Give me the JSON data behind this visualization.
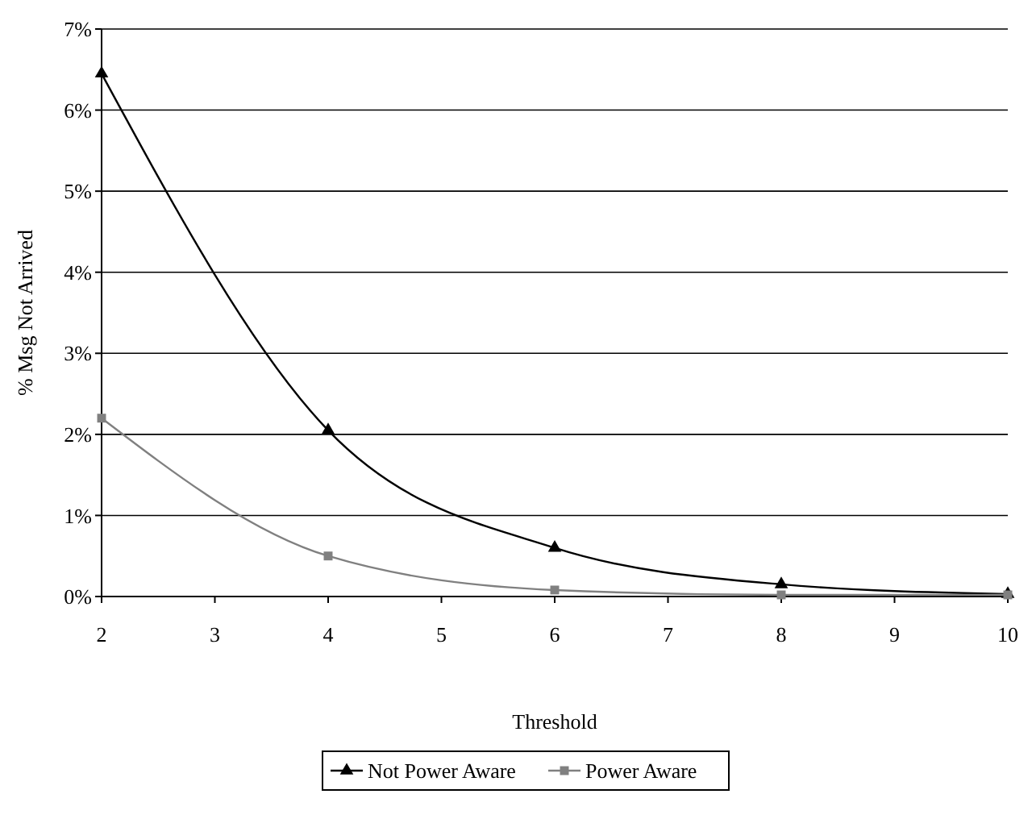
{
  "chart_data": {
    "type": "line",
    "xlabel": "Threshold",
    "ylabel": "% Msg Not Arrived",
    "x": [
      2,
      4,
      6,
      8,
      10
    ],
    "series": [
      {
        "name": "Not Power Aware",
        "color": "#000000",
        "marker": "triangle",
        "values": [
          6.45,
          2.05,
          0.6,
          0.15,
          0.03
        ]
      },
      {
        "name": "Power Aware",
        "color": "#808080",
        "marker": "square",
        "values": [
          2.2,
          0.5,
          0.08,
          0.02,
          0.02
        ]
      }
    ],
    "xlim": [
      2,
      10
    ],
    "xticks": [
      2,
      3,
      4,
      5,
      6,
      7,
      8,
      9,
      10
    ],
    "ylim": [
      0,
      7
    ],
    "yticks": [
      {
        "value": 0,
        "label": "0%"
      },
      {
        "value": 1,
        "label": "1%"
      },
      {
        "value": 2,
        "label": "2%"
      },
      {
        "value": 3,
        "label": "3%"
      },
      {
        "value": 4,
        "label": "4%"
      },
      {
        "value": 5,
        "label": "5%"
      },
      {
        "value": 6,
        "label": "6%"
      },
      {
        "value": 7,
        "label": "7%"
      }
    ],
    "grid": "y",
    "legend": "bottom",
    "line_style": "solid"
  }
}
